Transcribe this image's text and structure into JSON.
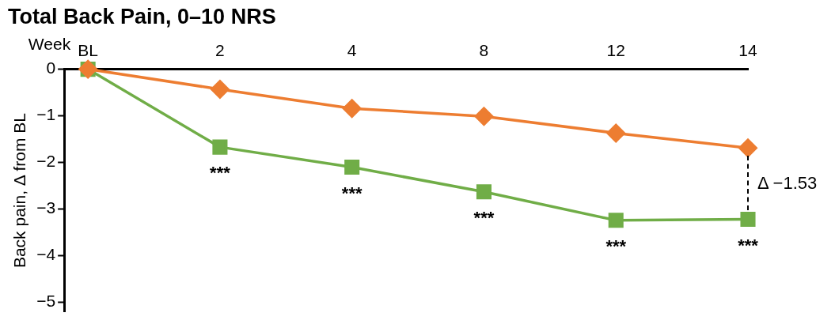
{
  "chart_data": {
    "type": "line",
    "title": "Total Back Pain, 0–10 NRS",
    "xlabel": "Week",
    "ylabel": "Back pain, Δ from BL",
    "categories": [
      "BL",
      "2",
      "4",
      "8",
      "12",
      "14"
    ],
    "series": [
      {
        "color": "#ed7d31",
        "marker": "diamond",
        "values": [
          0,
          -0.43,
          -0.84,
          -1.01,
          -1.37,
          -1.69
        ]
      },
      {
        "color": "#70ad47",
        "marker": "square",
        "values": [
          0,
          -1.67,
          -2.1,
          -2.63,
          -3.24,
          -3.22
        ]
      }
    ],
    "ylim": [
      -5.2,
      0
    ],
    "yticks": [
      {
        "value": 0,
        "label": "0"
      },
      {
        "value": -1,
        "label": "−1"
      },
      {
        "value": -2,
        "label": "−2"
      },
      {
        "value": -3,
        "label": "−3"
      },
      {
        "value": -4,
        "label": "−4"
      },
      {
        "value": -5,
        "label": "−5"
      }
    ],
    "annotations": [
      {
        "text": "***",
        "x": "2",
        "y": -1.67
      },
      {
        "text": "***",
        "x": "4",
        "y": -2.1
      },
      {
        "text": "***",
        "x": "8",
        "y": -2.63
      },
      {
        "text": "***",
        "x": "12",
        "y": -3.24
      },
      {
        "text": "***",
        "x": "14",
        "y": -3.22
      },
      "Δ −1.53"
    ],
    "grid": false,
    "legend": false,
    "line_style": "solid"
  }
}
